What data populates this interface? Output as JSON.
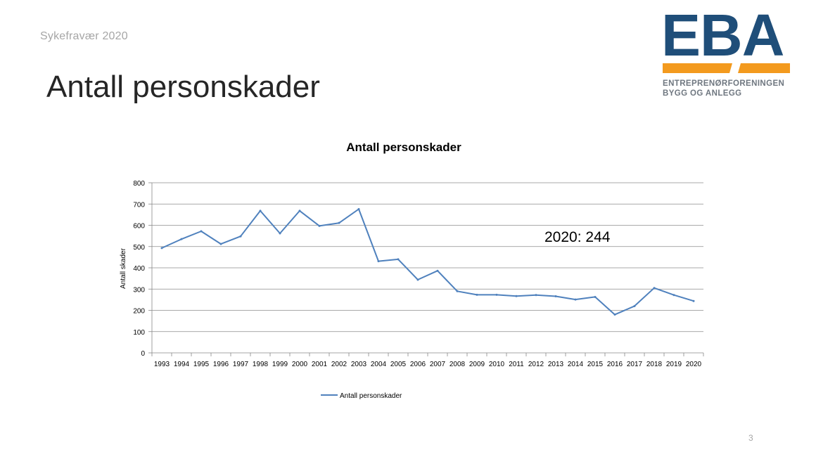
{
  "header": {
    "section": "Sykefravær 2020",
    "title": "Antall personskader",
    "page_number": "3"
  },
  "logo": {
    "letters": "EBA",
    "line1": "ENTREPRENØRFORENINGEN",
    "line2": "BYGG OG ANLEGG",
    "colors": {
      "blue": "#1f4e79",
      "orange": "#f39a1e",
      "gray": "#6f7780"
    }
  },
  "chart_data": {
    "type": "line",
    "title": "Antall personskader",
    "ylabel": "Antall skader",
    "xlabel": "",
    "ylim": [
      0,
      800
    ],
    "yticks": [
      0,
      100,
      200,
      300,
      400,
      500,
      600,
      700,
      800
    ],
    "grid": true,
    "legend_position": "bottom",
    "annotation": "2020: 244",
    "categories": [
      "1993",
      "1994",
      "1995",
      "1996",
      "1997",
      "1998",
      "1999",
      "2000",
      "2001",
      "2002",
      "2003",
      "2004",
      "2005",
      "2006",
      "2007",
      "2008",
      "2009",
      "2010",
      "2011",
      "2012",
      "2013",
      "2014",
      "2015",
      "2016",
      "2017",
      "2018",
      "2019",
      "2020"
    ],
    "series": [
      {
        "name": "Antall personskader",
        "color": "#4f81bd",
        "values": [
          493,
          535,
          572,
          512,
          548,
          668,
          562,
          668,
          597,
          611,
          676,
          431,
          440,
          344,
          386,
          290,
          273,
          273,
          267,
          272,
          266,
          251,
          263,
          180,
          220,
          305,
          272,
          244
        ]
      }
    ]
  }
}
